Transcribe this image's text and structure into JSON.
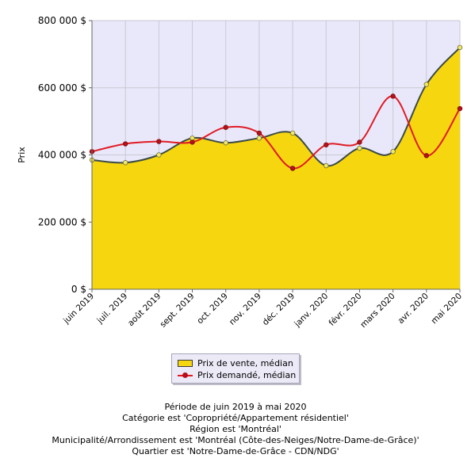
{
  "chart_data": {
    "type": "area",
    "title": "",
    "xlabel": "",
    "ylabel": "Prix",
    "categories": [
      "juin 2019",
      "juil. 2019",
      "août 2019",
      "sept. 2019",
      "oct. 2019",
      "nov. 2019",
      "déc. 2019",
      "janv. 2020",
      "févr. 2020",
      "mars 2020",
      "avr. 2020",
      "mai 2020"
    ],
    "ylim": [
      0,
      800000
    ],
    "yticks": [
      {
        "value": 0,
        "label": "0 $"
      },
      {
        "value": 200000,
        "label": "200 000 $"
      },
      {
        "value": 400000,
        "label": "400 000 $"
      },
      {
        "value": 600000,
        "label": "600 000 $"
      },
      {
        "value": 800000,
        "label": "800 000 $"
      }
    ],
    "grid": true,
    "legend_position": "bottom-center",
    "plot_background": "#e9e8fa",
    "series": [
      {
        "name": "Prix de vente, médian",
        "style": "area",
        "fill": "#f6d70f",
        "line": "#3b4a47",
        "marker_fill": "#f2e86a",
        "values": [
          385000,
          377000,
          400000,
          450000,
          436000,
          450000,
          465000,
          368000,
          420000,
          410000,
          610000,
          720000
        ]
      },
      {
        "name": "Prix demandé, médian",
        "style": "line",
        "line": "#e01b24",
        "marker_fill": "#b4121a",
        "values": [
          410000,
          433000,
          440000,
          438000,
          482000,
          465000,
          360000,
          430000,
          438000,
          575000,
          398000,
          538000
        ]
      }
    ]
  },
  "caption": {
    "lines": [
      "Période de juin 2019 à mai 2020",
      "Catégorie est 'Copropriété/Appartement résidentiel'",
      "Région est 'Montréal'",
      "Municipalité/Arrondissement est 'Montréal (Côte-des-Neiges/Notre-Dame-de-Grâce)'",
      "Quartier est 'Notre-Dame-de-Grâce - CDN/NDG'"
    ]
  }
}
